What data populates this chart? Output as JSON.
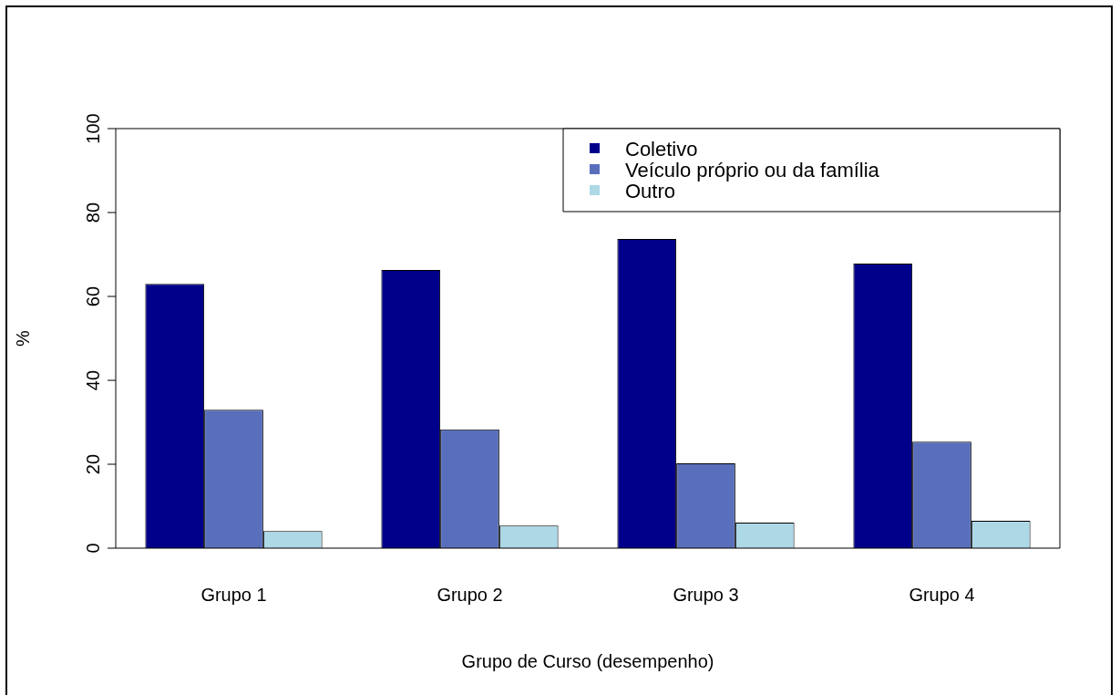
{
  "chart_data": {
    "type": "bar",
    "xlabel": "Grupo de Curso (desempenho)",
    "ylabel": "%",
    "categories": [
      "Grupo 1",
      "Grupo 2",
      "Grupo 3",
      "Grupo 4"
    ],
    "series": [
      {
        "name": "Coletivo",
        "color": "#00008b",
        "values": [
          63.0,
          66.3,
          73.7,
          67.8
        ]
      },
      {
        "name": "Veículo próprio ou da família",
        "color": "#5a6fbb",
        "values": [
          33.0,
          28.3,
          20.2,
          25.4
        ]
      },
      {
        "name": "Outro",
        "color": "#add8e6",
        "values": [
          4.1,
          5.4,
          6.1,
          6.5
        ]
      }
    ],
    "ylim": [
      0,
      100
    ],
    "yticks": [
      0,
      20,
      40,
      60,
      80,
      100
    ],
    "grid": false,
    "legend": "top right"
  }
}
